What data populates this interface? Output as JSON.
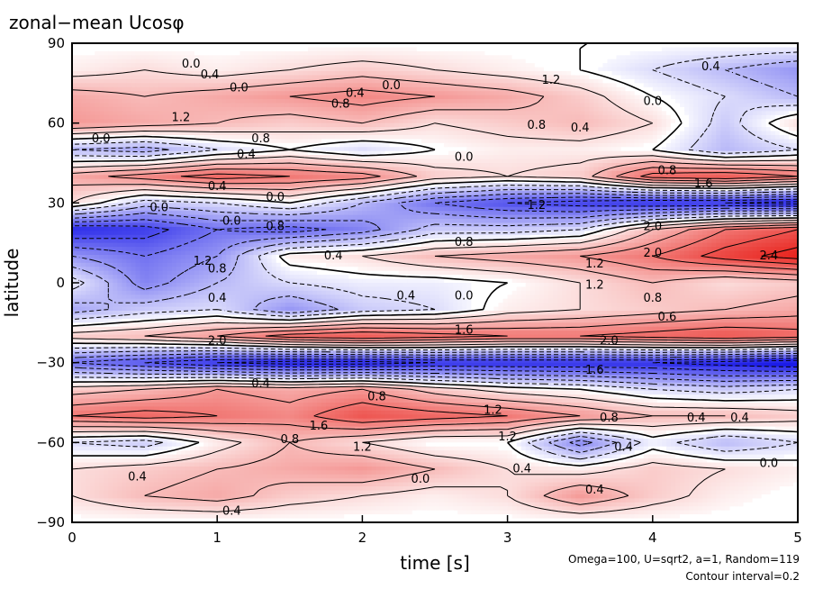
{
  "title": "zonal−mean Ucosφ",
  "chart_data": {
    "type": "heatmap",
    "title": "zonal−mean Ucosφ",
    "xlabel": "time [s]",
    "ylabel": "latitude",
    "xlim": [
      0,
      5
    ],
    "ylim": [
      -90,
      90
    ],
    "x_ticks": [
      0,
      1,
      2,
      3,
      4,
      5
    ],
    "x_tick_labels": [
      "0",
      "1",
      "2",
      "3",
      "4",
      "5"
    ],
    "y_ticks": [
      90,
      60,
      30,
      0,
      -30,
      -60,
      -90
    ],
    "y_tick_labels": [
      "90",
      "60",
      "30",
      "0",
      "−30",
      "−60",
      "−90"
    ],
    "contour_interval": 0.2,
    "colors": {
      "positive": "#e8201a",
      "negative": "#1a1ae8",
      "zero": "#ffffff"
    },
    "lat": [
      90,
      80,
      70,
      60,
      50,
      40,
      30,
      20,
      10,
      0,
      -10,
      -20,
      -30,
      -40,
      -50,
      -60,
      -70,
      -80,
      -90
    ],
    "time": [
      0,
      0.5,
      1,
      1.5,
      2,
      2.5,
      3,
      3.5,
      4,
      4.5,
      5
    ],
    "values": [
      [
        0,
        0,
        0,
        0,
        0,
        0,
        0,
        0,
        0,
        0,
        0
      ],
      [
        0.2,
        0.4,
        0.2,
        0.4,
        0.6,
        0.4,
        0.2,
        0.0,
        -0.4,
        -0.8,
        -1.2
      ],
      [
        1.0,
        0.8,
        1.0,
        1.2,
        1.4,
        1.2,
        1.0,
        0.6,
        0.0,
        -0.4,
        -0.8
      ],
      [
        1.2,
        1.0,
        0.8,
        0.6,
        0.8,
        0.4,
        0.6,
        0.8,
        0.4,
        -0.6,
        0.4
      ],
      [
        -0.8,
        -1.0,
        -0.4,
        0.0,
        -0.4,
        0.0,
        0.2,
        0.2,
        0.0,
        -0.8,
        -0.4
      ],
      [
        1.0,
        1.4,
        1.8,
        1.6,
        1.4,
        0.6,
        0.4,
        0.6,
        1.8,
        2.0,
        1.6
      ],
      [
        0.4,
        -0.6,
        -0.4,
        0.0,
        -0.8,
        -1.6,
        -2.0,
        -2.2,
        -2.4,
        -2.4,
        -2.6
      ],
      [
        -2.4,
        -2.2,
        -1.6,
        -1.8,
        -1.4,
        -0.6,
        -0.6,
        -0.4,
        0.8,
        1.6,
        2.0
      ],
      [
        -1.2,
        -1.6,
        -1.2,
        0.2,
        0.4,
        0.8,
        1.0,
        1.2,
        1.6,
        2.2,
        2.6
      ],
      [
        -0.2,
        -1.4,
        -0.8,
        -0.4,
        -0.2,
        -0.2,
        0.0,
        0.4,
        0.8,
        0.4,
        0.6
      ],
      [
        -1.0,
        -0.6,
        -0.4,
        -1.2,
        -0.6,
        -0.4,
        0.2,
        0.4,
        0.6,
        0.8,
        1.0
      ],
      [
        0.6,
        0.8,
        1.2,
        1.8,
        2.0,
        1.8,
        1.6,
        1.6,
        1.8,
        2.0,
        1.8
      ],
      [
        -1.6,
        -2.0,
        -2.4,
        -2.6,
        -2.6,
        -2.4,
        -2.4,
        -2.4,
        -2.4,
        -2.6,
        -2.8
      ],
      [
        0.6,
        0.8,
        1.2,
        1.0,
        1.2,
        0.6,
        0.2,
        0.0,
        -0.4,
        -0.6,
        -0.4
      ],
      [
        1.6,
        1.8,
        1.6,
        1.4,
        2.0,
        1.8,
        1.6,
        1.2,
        0.8,
        0.8,
        0.6
      ],
      [
        -0.4,
        -0.6,
        0.2,
        0.8,
        0.4,
        0.0,
        0.0,
        -1.4,
        -0.2,
        -0.8,
        -0.4
      ],
      [
        0.4,
        0.6,
        0.8,
        1.0,
        1.2,
        0.8,
        0.4,
        0.2,
        0.6,
        0.4,
        0.2
      ],
      [
        0.4,
        0.8,
        1.0,
        0.6,
        0.4,
        0.2,
        0.4,
        1.2,
        0.6,
        0.2,
        0.0
      ],
      [
        0,
        0,
        0,
        0,
        0,
        0,
        0,
        0,
        0,
        0,
        0
      ]
    ],
    "contour_labels": [
      {
        "x": 0.82,
        "y": 82,
        "text": "0.0"
      },
      {
        "x": 0.95,
        "y": 78,
        "text": "0.4"
      },
      {
        "x": 1.15,
        "y": 73,
        "text": "0.0"
      },
      {
        "x": 1.95,
        "y": 71,
        "text": "0.4"
      },
      {
        "x": 2.2,
        "y": 74,
        "text": "0.0"
      },
      {
        "x": 3.3,
        "y": 76,
        "text": "1.2"
      },
      {
        "x": 1.85,
        "y": 67,
        "text": "0.8"
      },
      {
        "x": 4.4,
        "y": 81,
        "text": "0.4"
      },
      {
        "x": 4.0,
        "y": 68,
        "text": "0.0"
      },
      {
        "x": 0.75,
        "y": 62,
        "text": "1.2"
      },
      {
        "x": 3.2,
        "y": 59,
        "text": "0.8"
      },
      {
        "x": 3.5,
        "y": 58,
        "text": "0.4"
      },
      {
        "x": 0.2,
        "y": 54,
        "text": "0.0"
      },
      {
        "x": 1.3,
        "y": 54,
        "text": "0.8"
      },
      {
        "x": 2.7,
        "y": 47,
        "text": "0.0"
      },
      {
        "x": 1.2,
        "y": 48,
        "text": "0.4"
      },
      {
        "x": 4.1,
        "y": 42,
        "text": "0.8"
      },
      {
        "x": 4.35,
        "y": 37,
        "text": "1.6"
      },
      {
        "x": 1.0,
        "y": 36,
        "text": "0.4"
      },
      {
        "x": 1.4,
        "y": 32,
        "text": "0.0"
      },
      {
        "x": 0.6,
        "y": 28,
        "text": "0.0"
      },
      {
        "x": 3.2,
        "y": 29,
        "text": "1.2"
      },
      {
        "x": 1.1,
        "y": 23,
        "text": "0.0"
      },
      {
        "x": 1.4,
        "y": 21,
        "text": "0.8"
      },
      {
        "x": 4.0,
        "y": 21,
        "text": "2.0"
      },
      {
        "x": 2.7,
        "y": 15,
        "text": "0.8"
      },
      {
        "x": 4.0,
        "y": 11,
        "text": "2.0"
      },
      {
        "x": 4.8,
        "y": 10,
        "text": "2.4"
      },
      {
        "x": 0.9,
        "y": 8,
        "text": "1.2"
      },
      {
        "x": 1.8,
        "y": 10,
        "text": "0.4"
      },
      {
        "x": 3.6,
        "y": 7,
        "text": "1.2"
      },
      {
        "x": 1.0,
        "y": 5,
        "text": "0.8"
      },
      {
        "x": 3.6,
        "y": -1,
        "text": "1.2"
      },
      {
        "x": 1.0,
        "y": -6,
        "text": "0.4"
      },
      {
        "x": 2.3,
        "y": -5,
        "text": "0.4"
      },
      {
        "x": 2.7,
        "y": -5,
        "text": "0.0"
      },
      {
        "x": 4.0,
        "y": -6,
        "text": "0.8"
      },
      {
        "x": 2.7,
        "y": -18,
        "text": "1.6"
      },
      {
        "x": 4.1,
        "y": -13,
        "text": "0.6"
      },
      {
        "x": 1.0,
        "y": -22,
        "text": "2.0"
      },
      {
        "x": 3.7,
        "y": -22,
        "text": "2.0"
      },
      {
        "x": 3.6,
        "y": -33,
        "text": "1.6"
      },
      {
        "x": 1.3,
        "y": -38,
        "text": "0.4"
      },
      {
        "x": 2.1,
        "y": -43,
        "text": "0.8"
      },
      {
        "x": 1.7,
        "y": -54,
        "text": "1.6"
      },
      {
        "x": 2.9,
        "y": -48,
        "text": "1.2"
      },
      {
        "x": 3.7,
        "y": -51,
        "text": "0.8"
      },
      {
        "x": 4.3,
        "y": -51,
        "text": "0.4"
      },
      {
        "x": 4.6,
        "y": -51,
        "text": "0.4"
      },
      {
        "x": 1.5,
        "y": -59,
        "text": "0.8"
      },
      {
        "x": 3.0,
        "y": -58,
        "text": "1.2"
      },
      {
        "x": 2.0,
        "y": -62,
        "text": "1.2"
      },
      {
        "x": 3.8,
        "y": -62,
        "text": "0.4"
      },
      {
        "x": 3.1,
        "y": -70,
        "text": "0.4"
      },
      {
        "x": 4.8,
        "y": -68,
        "text": "0.0"
      },
      {
        "x": 0.45,
        "y": -73,
        "text": "0.4"
      },
      {
        "x": 2.4,
        "y": -74,
        "text": "0.0"
      },
      {
        "x": 3.6,
        "y": -78,
        "text": "0.4"
      },
      {
        "x": 1.1,
        "y": -86,
        "text": "0.4"
      }
    ]
  },
  "info": {
    "params": "Omega=100, U=sqrt2, a=1, Random=119",
    "contour_interval_text": "Contour interval=0.2"
  }
}
